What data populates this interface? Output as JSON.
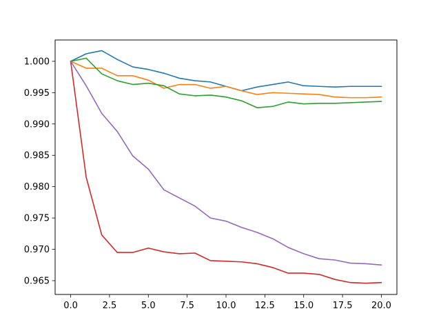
{
  "chart_data": {
    "type": "line",
    "title": "",
    "xlabel": "",
    "ylabel": "",
    "xlim": [
      -1,
      21
    ],
    "ylim": [
      0.9628,
      1.0034
    ],
    "grid": false,
    "legend": "none",
    "x_ticks": [
      0,
      2.5,
      5,
      7.5,
      10,
      12.5,
      15,
      17.5,
      20
    ],
    "x_tick_labels": [
      "0.0",
      "2.5",
      "5.0",
      "7.5",
      "10.0",
      "12.5",
      "15.0",
      "17.5",
      "20.0"
    ],
    "y_ticks": [
      0.965,
      0.97,
      0.975,
      0.98,
      0.985,
      0.99,
      0.995,
      1.0
    ],
    "y_tick_labels": [
      "0.965",
      "0.970",
      "0.975",
      "0.980",
      "0.985",
      "0.990",
      "0.995",
      "1.000"
    ],
    "x": [
      0,
      1,
      2,
      3,
      4,
      5,
      6,
      7,
      8,
      9,
      10,
      11,
      12,
      13,
      14,
      15,
      16,
      17,
      18,
      19,
      20
    ],
    "series": [
      {
        "color": "#1f77b4",
        "values": [
          1.0,
          1.0012,
          1.0017,
          1.0003,
          0.9991,
          0.9987,
          0.9981,
          0.9973,
          0.9969,
          0.9967,
          0.996,
          0.9953,
          0.9959,
          0.9963,
          0.9967,
          0.9961,
          0.996,
          0.9959,
          0.996,
          0.996,
          0.996
        ]
      },
      {
        "color": "#ff7f0e",
        "values": [
          1.0,
          0.9989,
          0.9989,
          0.9977,
          0.9977,
          0.997,
          0.9957,
          0.9963,
          0.9963,
          0.9957,
          0.996,
          0.9953,
          0.9947,
          0.995,
          0.9949,
          0.9948,
          0.9947,
          0.9943,
          0.9942,
          0.9942,
          0.9943
        ]
      },
      {
        "color": "#2ca02c",
        "values": [
          1.0,
          1.0005,
          0.998,
          0.9969,
          0.9963,
          0.9965,
          0.9961,
          0.9948,
          0.9945,
          0.9946,
          0.9943,
          0.9937,
          0.9926,
          0.9928,
          0.9935,
          0.9932,
          0.9933,
          0.9933,
          0.9934,
          0.9935,
          0.9936
        ]
      },
      {
        "color": "#d62728",
        "values": [
          1.0,
          0.9815,
          0.9723,
          0.9695,
          0.9695,
          0.9702,
          0.9696,
          0.9693,
          0.9694,
          0.9682,
          0.9681,
          0.968,
          0.9677,
          0.9671,
          0.9662,
          0.9662,
          0.966,
          0.9652,
          0.9647,
          0.9646,
          0.9647
        ]
      },
      {
        "color": "#9467bd",
        "values": [
          1.0,
          0.9961,
          0.9917,
          0.9888,
          0.9849,
          0.9828,
          0.9795,
          0.9782,
          0.9769,
          0.975,
          0.9745,
          0.9735,
          0.9727,
          0.9717,
          0.9703,
          0.9693,
          0.9685,
          0.9683,
          0.9678,
          0.9677,
          0.9675
        ]
      }
    ]
  }
}
